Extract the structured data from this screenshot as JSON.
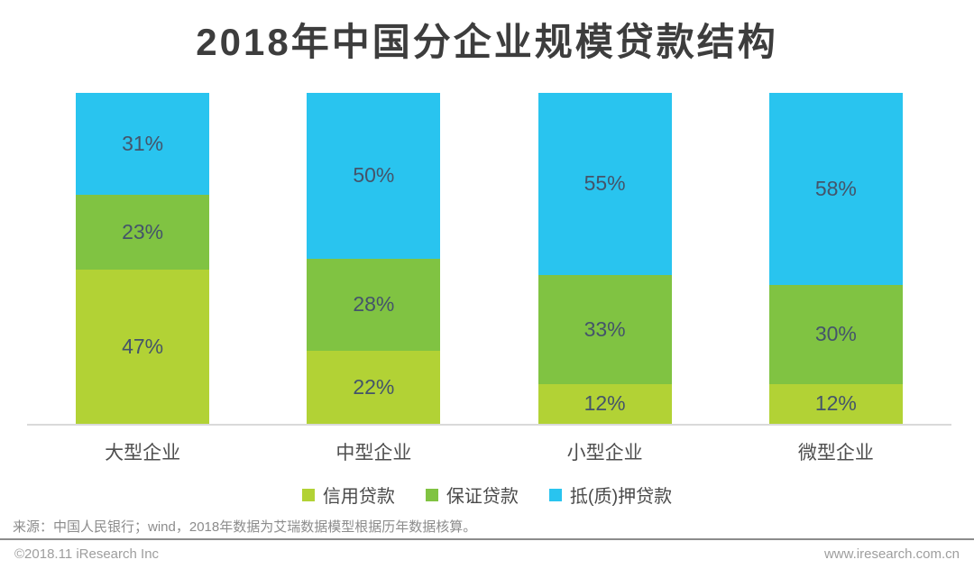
{
  "title": "2018年中国分企业规模贷款结构",
  "chart_data": {
    "type": "bar",
    "subtype": "stacked-percentage-column",
    "categories": [
      "大型企业",
      "中型企业",
      "小型企业",
      "微型企业"
    ],
    "series": [
      {
        "name": "信用贷款",
        "color": "#B2D235",
        "values": [
          47,
          22,
          12,
          12
        ]
      },
      {
        "name": "保证贷款",
        "color": "#80C342",
        "values": [
          23,
          28,
          33,
          30
        ]
      },
      {
        "name": "抵(质)押贷款",
        "color": "#29C4EF",
        "values": [
          31,
          50,
          55,
          58
        ]
      }
    ],
    "stack_order": "first-series-at-bottom",
    "value_suffix": "%",
    "value_label_color": "#44546A",
    "axis_line_color": "#D9D9D9",
    "grid": false,
    "legend_position": "bottom",
    "ylim": [
      0,
      100
    ]
  },
  "source_note": "来源：中国人民银行；wind，2018年数据为艾瑞数据模型根据历年数据核算。",
  "footer": {
    "copyright": "©2018.11 iResearch Inc",
    "website": "www.iresearch.com.cn"
  }
}
